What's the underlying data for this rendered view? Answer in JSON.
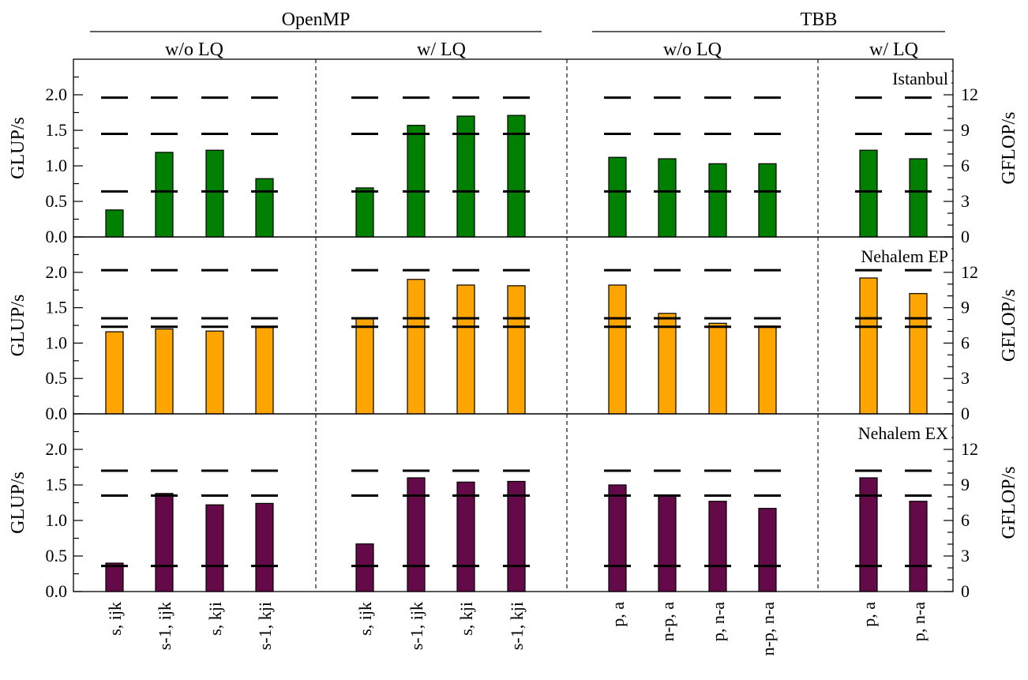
{
  "chart_data": {
    "type": "bar",
    "headers": {
      "openmp": "OpenMP",
      "tbb": "TBB",
      "groups": [
        "w/o LQ",
        "w/ LQ",
        "w/o LQ",
        "w/ LQ"
      ]
    },
    "categories": [
      "s, ijk",
      "s-1, ijk",
      "s, kji",
      "s-1, kji",
      "s, ijk",
      "s-1, ijk",
      "s, kji",
      "s-1, kji",
      "p, a",
      "n-p, a",
      "p, n-a",
      "n-p, n-a",
      "p, a",
      "p, n-a"
    ],
    "group_sizes": [
      4,
      4,
      4,
      2
    ],
    "ylabel_left": "GLUP/s",
    "ylabel_right": "GFLOP/s",
    "ylim": [
      0,
      2.5
    ],
    "yticks_left": [
      "0.0",
      "0.5",
      "1.0",
      "1.5",
      "2.0"
    ],
    "yticks_right": [
      "0",
      "3",
      "6",
      "9",
      "12"
    ],
    "panels": [
      {
        "name": "Istanbul",
        "color": "#008000",
        "values": [
          0.38,
          1.19,
          1.22,
          0.82,
          0.69,
          1.57,
          1.7,
          1.71,
          1.12,
          1.1,
          1.03,
          1.03,
          1.22,
          1.1
        ],
        "limits": [
          0.64,
          1.45,
          1.96
        ]
      },
      {
        "name": "Nehalem EP",
        "color": "#ffa500",
        "values": [
          1.16,
          1.2,
          1.17,
          1.22,
          1.35,
          1.9,
          1.82,
          1.81,
          1.82,
          1.42,
          1.28,
          1.24,
          1.92,
          1.7
        ],
        "limits": [
          1.23,
          1.35,
          2.03
        ]
      },
      {
        "name": "Nehalem EX",
        "color": "#650a48",
        "values": [
          0.4,
          1.38,
          1.22,
          1.24,
          0.67,
          1.6,
          1.54,
          1.55,
          1.5,
          1.35,
          1.27,
          1.17,
          1.6,
          1.27
        ],
        "limits": [
          0.36,
          1.35,
          1.7
        ]
      }
    ]
  }
}
